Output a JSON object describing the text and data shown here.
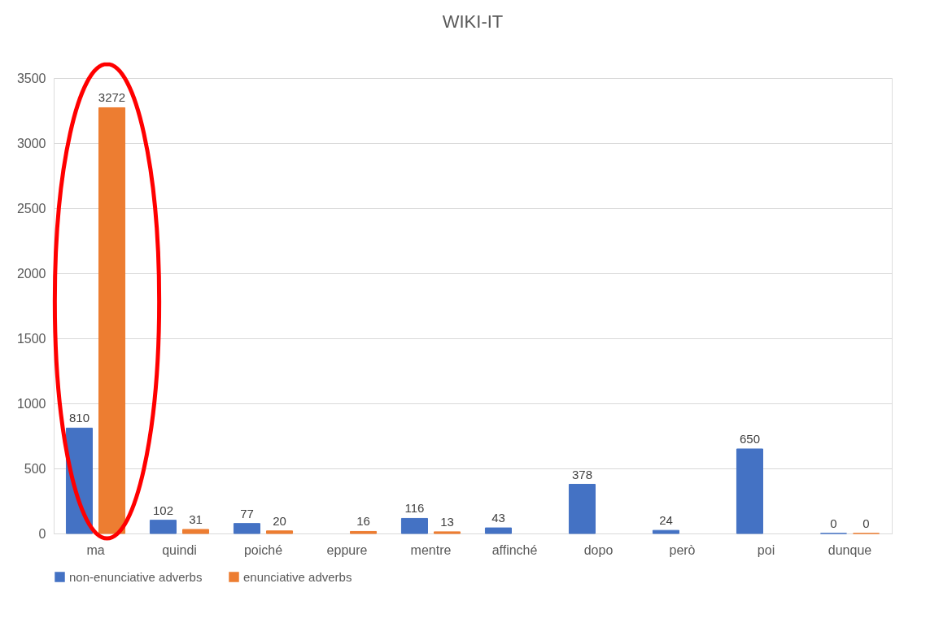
{
  "chart_data": {
    "type": "bar",
    "title": "WIKI-IT",
    "categories": [
      "ma",
      "quindi",
      "poiché",
      "eppure",
      "mentre",
      "affinché",
      "dopo",
      "però",
      "poi",
      "dunque"
    ],
    "series": [
      {
        "name": "non-enunciative adverbs",
        "color": "#4472c4",
        "values": [
          810,
          102,
          77,
          null,
          116,
          43,
          378,
          24,
          650,
          0
        ]
      },
      {
        "name": "enunciative adverbs",
        "color": "#ed7d31",
        "values": [
          3272,
          31,
          20,
          16,
          13,
          null,
          null,
          null,
          null,
          0
        ]
      }
    ],
    "ylim": [
      0,
      3500
    ],
    "yticks": [
      0,
      500,
      1000,
      1500,
      2000,
      2500,
      3000,
      3500
    ],
    "grid": "y",
    "legend": "bottom",
    "data_labels": true
  }
}
